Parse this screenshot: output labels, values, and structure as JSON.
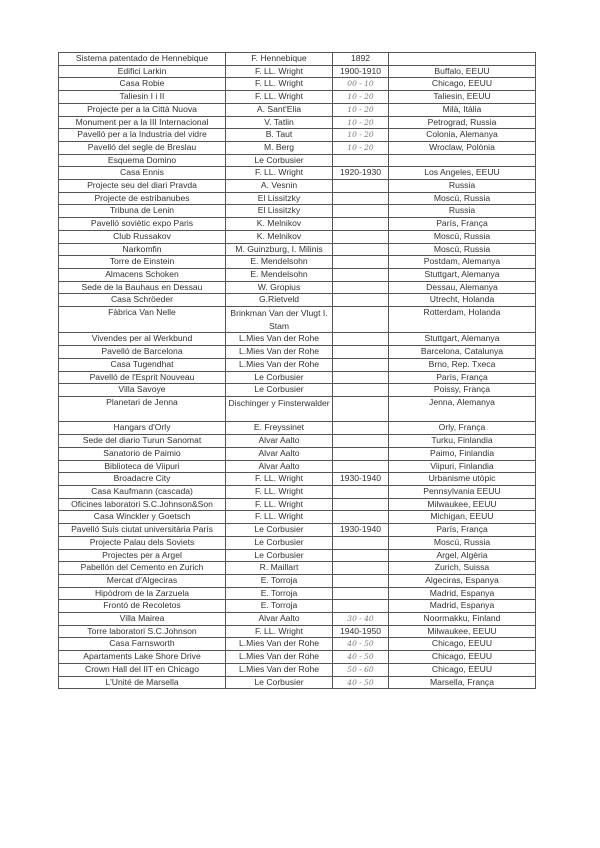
{
  "rows": [
    {
      "work": "Sistema patentado de Hennebique",
      "author": "F. Hennebique",
      "years": "1892",
      "place": "",
      "hand": false
    },
    {
      "work": "Edifici Larkin",
      "author": "F. LL. Wright",
      "years": "1900-1910",
      "place": "Buffalo, EEUU",
      "hand": false
    },
    {
      "work": "Casa Robie",
      "author": "F. LL. Wright",
      "years": "00 - 10",
      "place": "Chicago, EEUU",
      "hand": true
    },
    {
      "work": "Taliesin I i II",
      "author": "F. LL. Wright",
      "years": "10 - 20",
      "place": "Taliesin, EEUU",
      "hand": true
    },
    {
      "work": "Projecte per a la Città Nuova",
      "author": "A. Sant'Elia",
      "years": "10 - 20",
      "place": "Milà, Itàlia",
      "hand": true
    },
    {
      "work": "Monument per a la III Internacional",
      "author": "V. Tatlin",
      "years": "10 - 20",
      "place": "Petrograd, Russia",
      "hand": true
    },
    {
      "work": "Pavelló per a la Industria del vidre",
      "author": "B. Taut",
      "years": "10 - 20",
      "place": "Colonia, Alemanya",
      "hand": true
    },
    {
      "work": "Pavelló del segle de Breslau",
      "author": "M. Berg",
      "years": "10 - 20",
      "place": "Wroclaw, Polònia",
      "hand": true
    },
    {
      "work": "Esquema Domino",
      "author": "Le Corbusier",
      "years": "",
      "place": "",
      "hand": false
    },
    {
      "work": "Casa Ennis",
      "author": "F. LL. Wright",
      "years": "1920-1930",
      "place": "Los Angeles, EEUU",
      "hand": false
    },
    {
      "work": "Projecte seu del diari Pravda",
      "author": "A. Vesnin",
      "years": "",
      "place": "Russia",
      "hand": false
    },
    {
      "work": "Projecte de estribanubes",
      "author": "El Lissitzky",
      "years": "",
      "place": "Moscú, Russia",
      "hand": false
    },
    {
      "work": "Tribuna de Lenin",
      "author": "El Lissitzky",
      "years": "",
      "place": "Russia",
      "hand": false
    },
    {
      "work": "Pavelló soviètic expo Paris",
      "author": "K. Melnikov",
      "years": "",
      "place": "París, França",
      "hand": false
    },
    {
      "work": "Club Russakov",
      "author": "K. Melnikov",
      "years": "",
      "place": "Moscú, Russia",
      "hand": false
    },
    {
      "work": "Narkomfin",
      "author": "M. Guinzburg, I. Milinis",
      "years": "",
      "place": "Moscú, Russia",
      "hand": false
    },
    {
      "work": "Torre de Einstein",
      "author": "E. Mendelsohn",
      "years": "",
      "place": "Postdam, Alemanya",
      "hand": false
    },
    {
      "work": "Almacens Schoken",
      "author": "E. Mendelsohn",
      "years": "",
      "place": "Stuttgart, Alemanya",
      "hand": false
    },
    {
      "work": "Sede de la Bauhaus en Dessau",
      "author": "W. Gropius",
      "years": "",
      "place": "Dessau, Alemanya",
      "hand": false
    },
    {
      "work": "Casa Schröeder",
      "author": "G.Rietveld",
      "years": "",
      "place": "Utrecht, Holanda",
      "hand": false
    },
    {
      "work": "Fàbrica Van Nelle",
      "author": "Brinkman Van der Vlugt I. Stam",
      "years": "",
      "place": "Rotterdam, Holanda",
      "hand": false,
      "double": true
    },
    {
      "work": "Vivendes per al Werkbund",
      "author": "L.Mies Van der Rohe",
      "years": "",
      "place": "Stuttgart, Alemanya",
      "hand": false
    },
    {
      "work": "Pavelló de Barcelona",
      "author": "L.Mies Van der Rohe",
      "years": "",
      "place": "Barcelona, Catalunya",
      "hand": false
    },
    {
      "work": "Casa Tugendhat",
      "author": "L.Mies Van der Rohe",
      "years": "",
      "place": "Brno, Rep. Txeca",
      "hand": false
    },
    {
      "work": "Pavelló de l'Esprit Nouveau",
      "author": "Le Corbusier",
      "years": "",
      "place": "París, França",
      "hand": false
    },
    {
      "work": "Villa Savoye",
      "author": "Le Corbusier",
      "years": "",
      "place": "Poissy, França",
      "hand": false
    },
    {
      "work": "Planetari de Jenna",
      "author": "Dischinger y Finsterwalder",
      "years": "",
      "place": "Jenna, Alemanya",
      "hand": false,
      "double": true
    },
    {
      "work": "Hangars d'Orly",
      "author": "E. Freyssinet",
      "years": "",
      "place": "Orly, França",
      "hand": false
    },
    {
      "work": "Sede del diario Turun Sanomat",
      "author": "Alvar Aalto",
      "years": "",
      "place": "Turku, Finlandia",
      "hand": false
    },
    {
      "work": "Sanatorio de Paimio",
      "author": "Alvar Aalto",
      "years": "",
      "place": "Paimo, Finlandia",
      "hand": false
    },
    {
      "work": "Biblioteca de Viipuri",
      "author": "Alvar Aalto",
      "years": "",
      "place": "Viipuri, Finlandia",
      "hand": false
    },
    {
      "work": "Broadacre City",
      "author": "F. LL. Wright",
      "years": "1930-1940",
      "place": "Urbanisme utòpic",
      "hand": false
    },
    {
      "work": "Casa Kaufmann (cascada)",
      "author": "F. LL. Wright",
      "years": "",
      "place": "Pennsylvania EEUU",
      "hand": false
    },
    {
      "work": "Oficines laboratori S.C.Johnson&Son",
      "author": "F. LL. Wright",
      "years": "",
      "place": "Milwaukee, EEUU",
      "hand": false
    },
    {
      "work": "Casa Winckler y Goetsch",
      "author": "F. LL. Wright",
      "years": "",
      "place": "Michigan, EEUU",
      "hand": false
    },
    {
      "work": "Pavelló Suís ciutat universitària París",
      "author": "Le Corbusier",
      "years": "1930-1940",
      "place": "París, França",
      "hand": false
    },
    {
      "work": "Projecte Palau dels Soviets",
      "author": "Le Corbusier",
      "years": "",
      "place": "Moscú, Russia",
      "hand": false
    },
    {
      "work": "Projectes per a Argel",
      "author": "Le Corbusier",
      "years": "",
      "place": "Argel, Algèria",
      "hand": false
    },
    {
      "work": "Pabellón del Cemento en Zurich",
      "author": "R. Maillart",
      "years": "",
      "place": "Zurich, Suissa",
      "hand": false
    },
    {
      "work": "Mercat d'Algeciras",
      "author": "E. Torroja",
      "years": "",
      "place": "Algeciras, Espanya",
      "hand": false
    },
    {
      "work": "Hipòdrom de la Zarzuela",
      "author": "E. Torroja",
      "years": "",
      "place": "Madrid, Espanya",
      "hand": false
    },
    {
      "work": "Frontó de Recoletos",
      "author": "E. Torroja",
      "years": "",
      "place": "Madrid, Espanya",
      "hand": false
    },
    {
      "work": "Villa Mairea",
      "author": "Alvar Aalto",
      "years": "30 - 40",
      "place": "Noormakku, Finland",
      "hand": true
    },
    {
      "work": "Torre laboratori S.C.Johnson",
      "author": "F. LL. Wright",
      "years": "1940-1950",
      "place": "Milwaukee, EEUU",
      "hand": false
    },
    {
      "work": "Casa Farnsworth",
      "author": "L.Mies Van der Rohe",
      "years": "40 - 50",
      "place": "Chicago, EEUU",
      "hand": true
    },
    {
      "work": "Apartaments Lake Shore Drive",
      "author": "L.Mies Van der Rohe",
      "years": "40 - 50",
      "place": "Chicago, EEUU",
      "hand": true
    },
    {
      "work": "Crown Hall del IIT en Chicago",
      "author": "L.Mies Van der Rohe",
      "years": "50 - 60",
      "place": "Chicago, EEUU",
      "hand": true
    },
    {
      "work": "L'Unité de Marsella",
      "author": "Le Corbusier",
      "years": "40 - 50",
      "place": "Marsella, França",
      "hand": true
    }
  ]
}
